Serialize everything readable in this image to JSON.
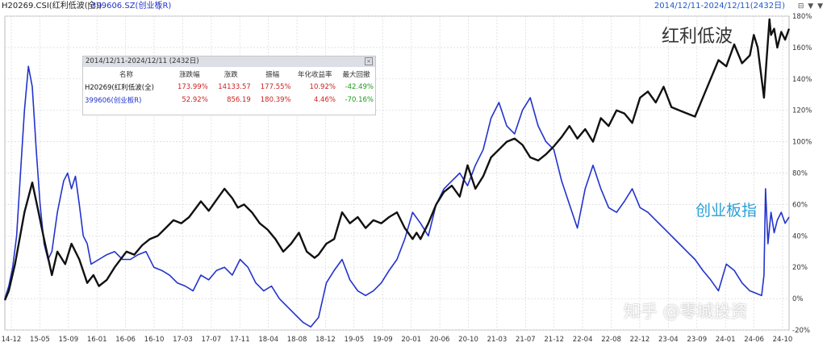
{
  "header": {
    "series1_label": "H20269.CSI(红利低波(全))",
    "separator": "|",
    "series2_label": "399606.SZ(创业板R)",
    "date_range": "2014/12/11-2024/12/11(2432日)",
    "controls": "⊟ ▼ ▼"
  },
  "legend": {
    "title": "2014/12/11-2024/12/11 (2432日)",
    "close_label": "×",
    "columns": [
      "名称",
      "涨跌幅",
      "涨跌",
      "振幅",
      "年化收益率",
      "最大回撤"
    ],
    "rows": [
      {
        "name": "H20269(红利低波(全)",
        "change_pct": "173.99%",
        "change": "14133.57",
        "amplitude": "177.55%",
        "annual_return": "10.92%",
        "max_drawdown": "-42.49%"
      },
      {
        "name": "399606(创业板R)",
        "change_pct": "52.92%",
        "change": "856.19",
        "amplitude": "180.39%",
        "annual_return": "4.46%",
        "max_drawdown": "-70.16%"
      }
    ]
  },
  "annotations": {
    "series1": "红利低波",
    "series2": "创业板指",
    "watermark": "知乎 @零城投资"
  },
  "colors": {
    "series1": "#111111",
    "series2": "#2233cc",
    "grid": "#d8d8d8",
    "axis_text": "#333333"
  },
  "chart_data": {
    "type": "line",
    "x_labels": [
      "14-12",
      "15-05",
      "15-09",
      "16-01",
      "16-06",
      "16-10",
      "17-03",
      "17-07",
      "17-11",
      "18-04",
      "18-08",
      "18-12",
      "19-05",
      "19-09",
      "20-01",
      "20-06",
      "20-10",
      "21-03",
      "21-07",
      "21-12",
      "22-04",
      "22-08",
      "22-12",
      "23-04",
      "23-09",
      "24-01",
      "24-06",
      "24-10"
    ],
    "y_ticks": [
      "-20%",
      "0%",
      "20%",
      "40%",
      "60%",
      "80%",
      "100%",
      "120%",
      "140%",
      "160%",
      "180%"
    ],
    "ylim": [
      -20,
      180
    ],
    "xlim": [
      2014.95,
      2024.95
    ],
    "grid": true,
    "series": [
      {
        "name": "H20269.CSI(红利低波(全))",
        "x": [
          2014.95,
          2015.0,
          2015.08,
          2015.2,
          2015.3,
          2015.38,
          2015.45,
          2015.55,
          2015.62,
          2015.72,
          2015.8,
          2015.9,
          2016.0,
          2016.08,
          2016.15,
          2016.25,
          2016.35,
          2016.5,
          2016.6,
          2016.7,
          2016.8,
          2016.9,
          2017.0,
          2017.1,
          2017.2,
          2017.3,
          2017.45,
          2017.55,
          2017.65,
          2017.75,
          2017.85,
          2017.92,
          2018.0,
          2018.1,
          2018.2,
          2018.3,
          2018.4,
          2018.5,
          2018.6,
          2018.7,
          2018.8,
          2018.9,
          2018.95,
          2019.05,
          2019.15,
          2019.25,
          2019.35,
          2019.45,
          2019.55,
          2019.65,
          2019.75,
          2019.85,
          2019.95,
          2020.05,
          2020.15,
          2020.2,
          2020.25,
          2020.35,
          2020.45,
          2020.55,
          2020.65,
          2020.75,
          2020.85,
          2020.95,
          2021.05,
          2021.15,
          2021.25,
          2021.35,
          2021.45,
          2021.55,
          2021.65,
          2021.75,
          2021.85,
          2021.95,
          2022.05,
          2022.15,
          2022.25,
          2022.35,
          2022.45,
          2022.55,
          2022.65,
          2022.75,
          2022.85,
          2022.95,
          2023.05,
          2023.15,
          2023.25,
          2023.35,
          2023.45,
          2023.55,
          2023.65,
          2023.75,
          2023.85,
          2023.95,
          2024.05,
          2024.15,
          2024.25,
          2024.35,
          2024.45,
          2024.5,
          2024.55,
          2024.6,
          2024.63,
          2024.66,
          2024.7,
          2024.72,
          2024.76,
          2024.8,
          2024.85,
          2024.9,
          2024.95
        ],
        "y": [
          -1,
          5,
          22,
          55,
          74,
          55,
          38,
          15,
          30,
          22,
          35,
          25,
          10,
          15,
          8,
          12,
          20,
          30,
          28,
          34,
          38,
          40,
          45,
          50,
          48,
          52,
          62,
          56,
          63,
          70,
          64,
          58,
          60,
          55,
          48,
          44,
          38,
          30,
          35,
          42,
          30,
          26,
          28,
          35,
          38,
          55,
          48,
          52,
          45,
          50,
          48,
          52,
          55,
          45,
          38,
          42,
          38,
          48,
          60,
          68,
          72,
          65,
          85,
          70,
          78,
          90,
          95,
          100,
          102,
          98,
          90,
          88,
          92,
          97,
          103,
          110,
          102,
          108,
          100,
          115,
          110,
          120,
          118,
          112,
          128,
          132,
          125,
          135,
          122,
          120,
          118,
          116,
          128,
          140,
          152,
          148,
          162,
          150,
          155,
          168,
          160,
          140,
          128,
          150,
          178,
          168,
          172,
          160,
          170,
          165,
          172
        ]
      },
      {
        "name": "399606.SZ(创业板R)",
        "x": [
          2014.95,
          2015.0,
          2015.05,
          2015.1,
          2015.15,
          2015.2,
          2015.25,
          2015.3,
          2015.35,
          2015.4,
          2015.45,
          2015.5,
          2015.55,
          2015.62,
          2015.7,
          2015.75,
          2015.8,
          2015.85,
          2015.9,
          2015.95,
          2016.0,
          2016.05,
          2016.15,
          2016.25,
          2016.35,
          2016.45,
          2016.55,
          2016.65,
          2016.75,
          2016.85,
          2016.95,
          2017.05,
          2017.15,
          2017.25,
          2017.35,
          2017.45,
          2017.55,
          2017.65,
          2017.75,
          2017.85,
          2017.95,
          2018.05,
          2018.15,
          2018.25,
          2018.35,
          2018.45,
          2018.55,
          2018.65,
          2018.75,
          2018.85,
          2018.95,
          2019.05,
          2019.15,
          2019.25,
          2019.35,
          2019.45,
          2019.55,
          2019.65,
          2019.75,
          2019.85,
          2019.95,
          2020.05,
          2020.15,
          2020.25,
          2020.35,
          2020.45,
          2020.55,
          2020.65,
          2020.75,
          2020.85,
          2020.95,
          2021.05,
          2021.15,
          2021.25,
          2021.35,
          2021.45,
          2021.55,
          2021.65,
          2021.75,
          2021.85,
          2021.95,
          2022.05,
          2022.15,
          2022.25,
          2022.35,
          2022.45,
          2022.55,
          2022.65,
          2022.75,
          2022.85,
          2022.95,
          2023.05,
          2023.15,
          2023.25,
          2023.35,
          2023.45,
          2023.55,
          2023.65,
          2023.75,
          2023.85,
          2023.95,
          2024.05,
          2024.15,
          2024.25,
          2024.35,
          2024.45,
          2024.55,
          2024.6,
          2024.63,
          2024.65,
          2024.68,
          2024.72,
          2024.76,
          2024.8,
          2024.85,
          2024.9,
          2024.95
        ],
        "y": [
          0,
          8,
          20,
          40,
          80,
          120,
          148,
          135,
          95,
          60,
          35,
          25,
          30,
          55,
          75,
          80,
          70,
          78,
          60,
          40,
          35,
          22,
          25,
          28,
          30,
          25,
          25,
          28,
          30,
          20,
          18,
          15,
          10,
          8,
          5,
          15,
          12,
          18,
          20,
          15,
          25,
          20,
          10,
          5,
          8,
          0,
          -5,
          -10,
          -15,
          -18,
          -12,
          10,
          18,
          25,
          12,
          5,
          2,
          5,
          10,
          18,
          25,
          38,
          55,
          48,
          40,
          60,
          70,
          75,
          80,
          72,
          85,
          95,
          115,
          125,
          110,
          105,
          120,
          128,
          110,
          100,
          95,
          75,
          60,
          45,
          70,
          85,
          70,
          58,
          55,
          62,
          70,
          58,
          55,
          50,
          45,
          40,
          35,
          30,
          25,
          18,
          12,
          5,
          22,
          18,
          10,
          5,
          3,
          2,
          15,
          70,
          35,
          55,
          42,
          50,
          55,
          48,
          52
        ]
      }
    ]
  }
}
